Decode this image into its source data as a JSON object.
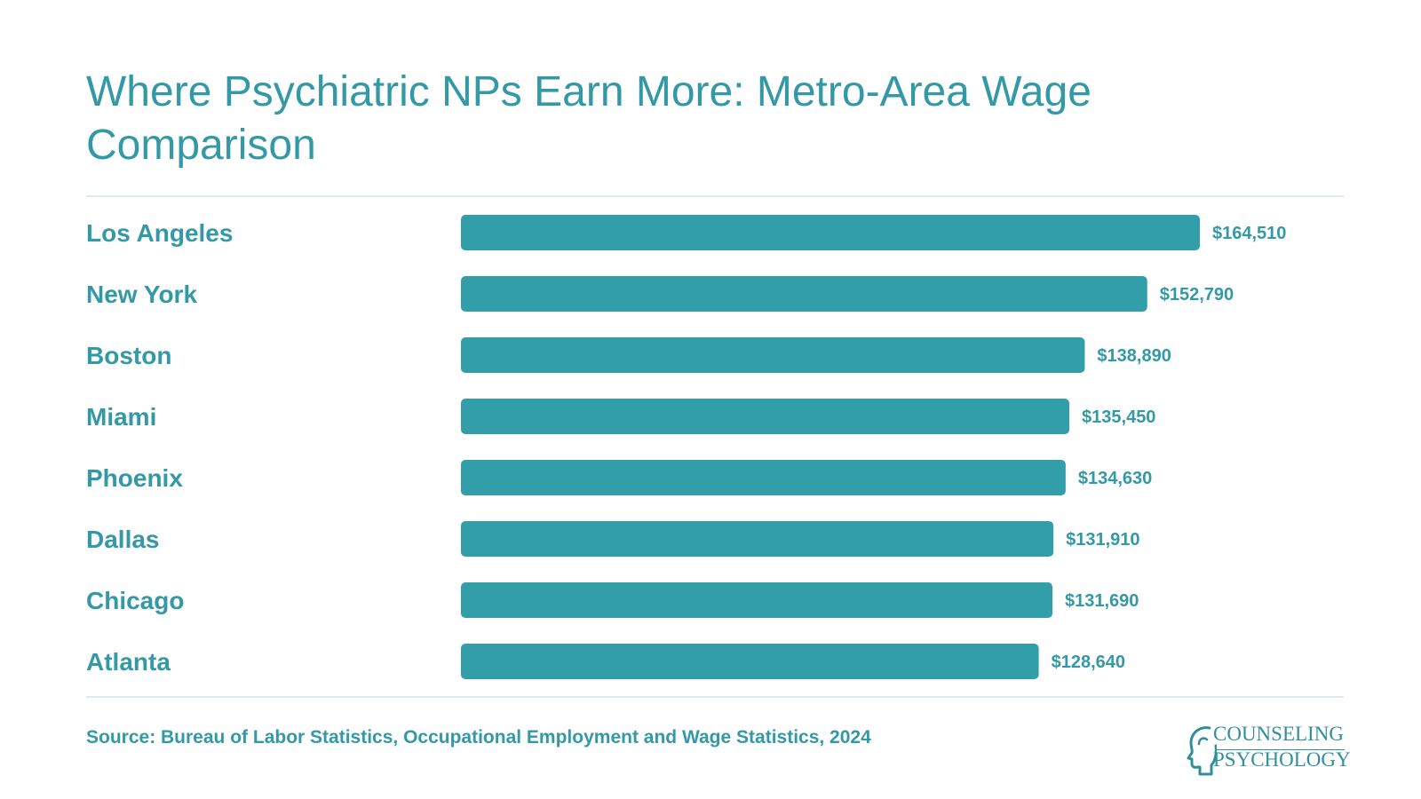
{
  "header": {
    "title": "Where Psychiatric NPs Earn More: Metro-Area Wage Comparison"
  },
  "chart_data": {
    "type": "bar",
    "orientation": "horizontal",
    "title": "Where Psychiatric NPs Earn More: Metro-Area Wage Comparison",
    "categories": [
      "Los Angeles",
      "New York",
      "Boston",
      "Miami",
      "Phoenix",
      "Dallas",
      "Chicago",
      "Atlanta"
    ],
    "values": [
      164510,
      152790,
      138890,
      135450,
      134630,
      131910,
      131690,
      128640
    ],
    "value_labels": [
      "$164,510",
      "$152,790",
      "$138,890",
      "$135,450",
      "$134,630",
      "$131,910",
      "$131,690",
      "$128,640"
    ],
    "xlabel": "",
    "ylabel": "",
    "xlim": [
      0,
      164510
    ],
    "grid": false,
    "legend": "none",
    "bar_color": "#329ea9"
  },
  "footer": {
    "source": "Source: Bureau of Labor Statistics, Occupational Employment and Wage Statistics, 2024"
  },
  "logo": {
    "line1": "COUNSELING",
    "line2": "PSYCHOLOGY",
    "icon": "head-profile-icon"
  },
  "colors": {
    "accent": "#3399a6",
    "bar": "#329ea9",
    "rule": "#dfe9ef"
  }
}
